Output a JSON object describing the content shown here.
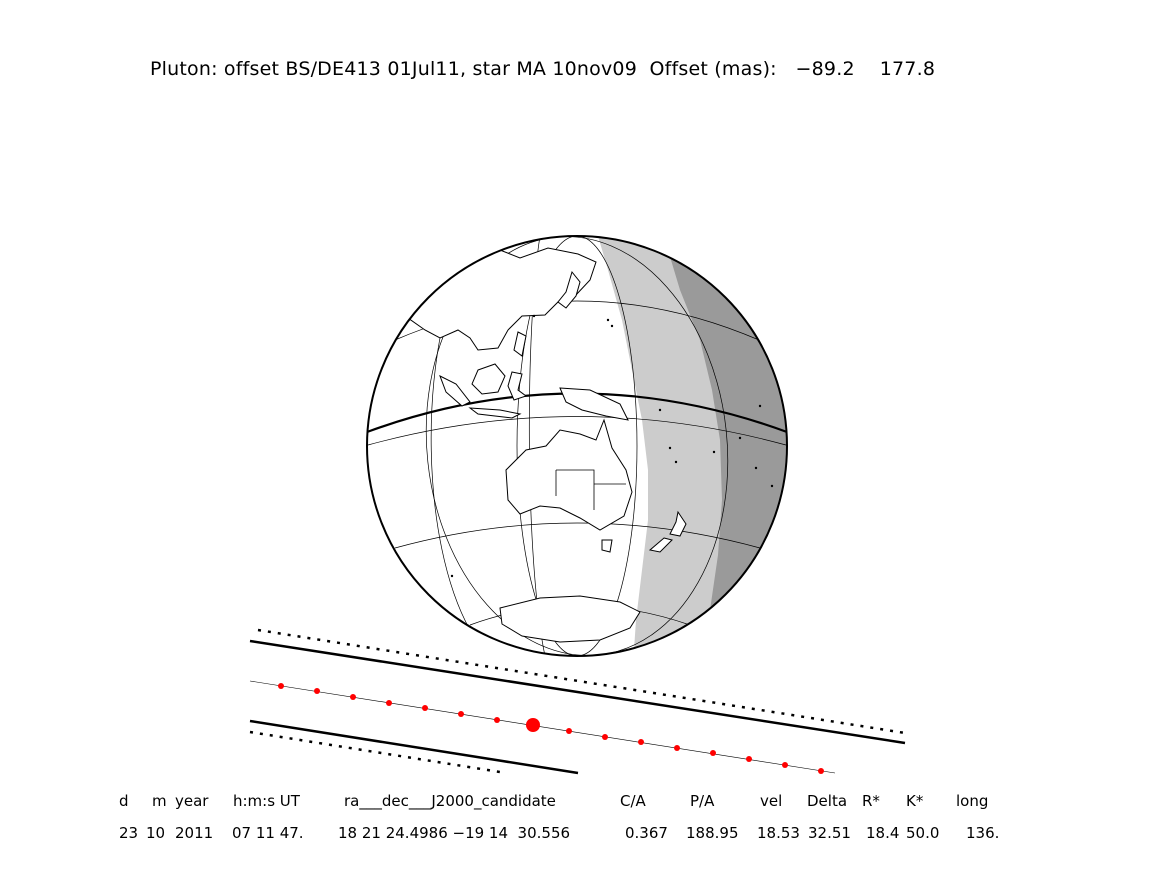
{
  "header": {
    "title": "Pluton: offset BS/DE413 01Jul11, star MA 10nov09",
    "offset_label": "Offset (mas):",
    "offset_ra": "−89.2",
    "offset_dec": "177.8"
  },
  "table": {
    "headers": [
      "d",
      "m",
      "year",
      "h:m:s UT",
      "ra___dec___J2000_candidate",
      "C/A",
      "P/A",
      "vel",
      "Delta",
      "R*",
      "K*",
      "long"
    ],
    "values": [
      "23",
      "10",
      "2011",
      "07 11 47.",
      "18 21 24.4986 −19 14  30.556",
      "0.367",
      "188.95",
      "18.53",
      "32.51",
      "18.4",
      "50.0",
      "136."
    ]
  },
  "colors": {
    "night_dark": "#9a9a9a",
    "twilight_light": "#cccccc",
    "track_dot": "#ff0000",
    "lines": "#000000"
  },
  "icons": [
    "globe-icon",
    "shadow-path-icon"
  ]
}
